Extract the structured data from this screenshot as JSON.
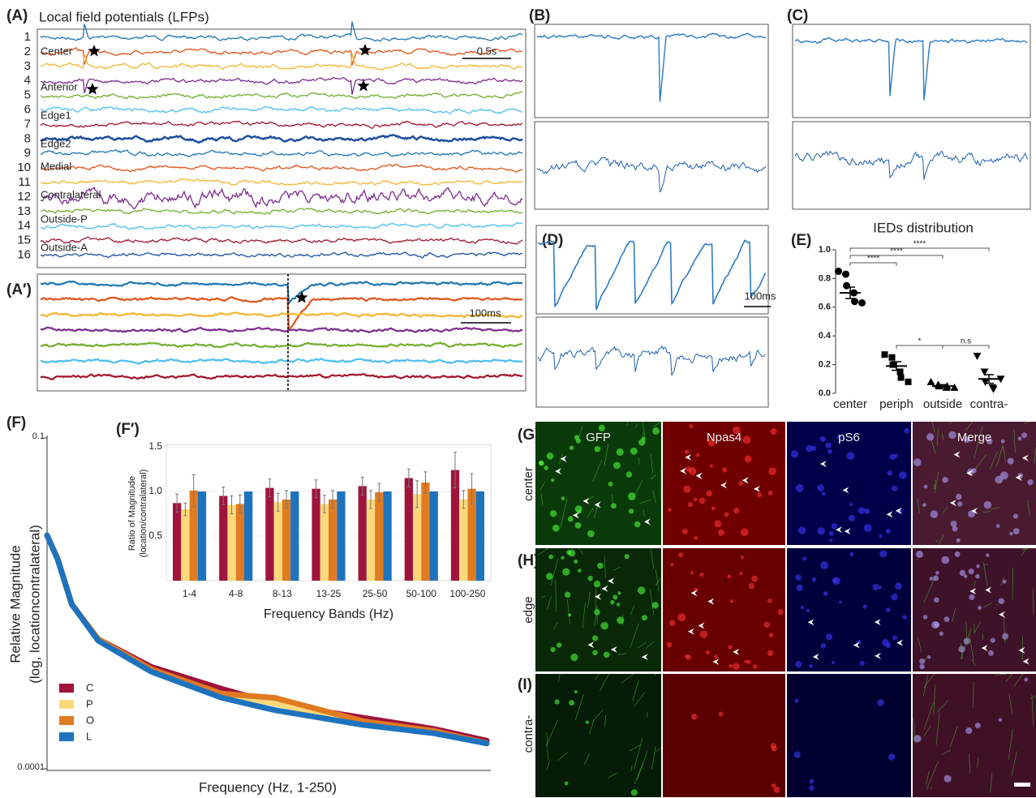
{
  "figure": {
    "A": {
      "label": "(A)",
      "title": "Local field potentials (LFPs)",
      "channels": [
        "1",
        "2",
        "3",
        "4",
        "5",
        "6",
        "7",
        "8",
        "9",
        "10",
        "11",
        "12",
        "13",
        "14",
        "15",
        "16"
      ],
      "regions": [
        "Center",
        "Anterior",
        "Edge1",
        "Edge2",
        "Medial",
        "Contralateral",
        "Outside-P",
        "Outside-A"
      ],
      "scale": "0.5s"
    },
    "A2": {
      "label": "(A′)",
      "scale": "100ms"
    },
    "B": {
      "label": "(B)"
    },
    "C": {
      "label": "(C)"
    },
    "D": {
      "label": "(D)",
      "scale": "100ms"
    },
    "E": {
      "label": "(E)"
    },
    "F": {
      "label": "(F)"
    },
    "F2": {
      "label": "(F′)"
    },
    "G": {
      "label": "(G)",
      "row": "center"
    },
    "H": {
      "label": "(H)",
      "row": "edge"
    },
    "I": {
      "label": "(I)",
      "row": "contra-"
    },
    "stains": [
      "GFP",
      "Npas4",
      "pS6",
      "Merge"
    ]
  },
  "chart_data": [
    {
      "type": "dot",
      "title": "IEDs distribution",
      "categories": [
        "center",
        "periph",
        "outside",
        "contra-"
      ],
      "markers": [
        "circle",
        "square",
        "triangle",
        "triangle-down"
      ],
      "points": [
        [
          0.85,
          0.83,
          0.75,
          0.7,
          0.64,
          0.63
        ],
        [
          0.27,
          0.25,
          0.2,
          0.15,
          0.11,
          0.08
        ],
        [
          0.08,
          0.06,
          0.05,
          0.04,
          0.05,
          0.04
        ],
        [
          0.26,
          0.15,
          0.08,
          0.04,
          0.03,
          0.1
        ]
      ],
      "means": [
        0.7,
        0.19,
        0.05,
        0.1
      ],
      "errors": [
        0.04,
        0.03,
        0.01,
        0.03
      ],
      "ylim": [
        0,
        1
      ],
      "yticks": [
        {
          "value": 0,
          "label": "0.0"
        },
        0.2,
        0.4,
        0.6,
        0.8,
        {
          "value": 1,
          "label": "1.0"
        }
      ],
      "annotations": [
        {
          "text": "****",
          "pair": [
            0,
            1
          ]
        },
        {
          "text": "****",
          "pair": [
            0,
            2
          ]
        },
        {
          "text": "****",
          "pair": [
            0,
            3
          ]
        },
        {
          "text": "*",
          "pair": [
            1,
            2
          ]
        },
        {
          "text": "n.s",
          "pair": [
            2,
            3
          ]
        }
      ]
    },
    {
      "type": "line",
      "xlabel": "Frequency (Hz, 1-250)",
      "ylabel": [
        "Relative Magnitude",
        "(log, locationcontralateral)"
      ],
      "log_y": true,
      "xlim": [
        1,
        250
      ],
      "ylim": [
        0.0001,
        0.1
      ],
      "yticks": [
        0.1,
        0.0001
      ],
      "x": [
        1,
        7,
        15,
        30,
        60,
        100,
        130,
        180,
        220,
        250
      ],
      "series": [
        {
          "name": "C",
          "color": "#a0143c",
          "values": [
            0.0131,
            0.008,
            0.0031,
            0.0015,
            0.00084,
            0.00053,
            0.00039,
            0.00029,
            0.00023,
            0.00018
          ]
        },
        {
          "name": "P",
          "color": "#fbd97a",
          "values": [
            0.0131,
            0.008,
            0.0031,
            0.0015,
            0.00079,
            0.00047,
            0.00039,
            0.00026,
            0.00022,
            0.00017
          ]
        },
        {
          "name": "O",
          "color": "#e07b22",
          "values": [
            0.0131,
            0.008,
            0.0031,
            0.0015,
            0.0008,
            0.00048,
            0.00044,
            0.00027,
            0.00022,
            0.00017
          ]
        },
        {
          "name": "L",
          "color": "#1e73be",
          "values": [
            0.0131,
            0.0079,
            0.0031,
            0.00145,
            0.00076,
            0.00044,
            0.00034,
            0.00025,
            0.00021,
            0.00017
          ]
        }
      ]
    },
    {
      "type": "bar",
      "xlabel": "Frequency Bands (Hz)",
      "ylabel": [
        "Ratio of Magnitude",
        "(location/contralateral)"
      ],
      "categories": [
        "1-4",
        "4-8",
        "8-13",
        "13-25",
        "25-50",
        "50-100",
        "100-250"
      ],
      "ylim": [
        0,
        1.5
      ],
      "yticks": [
        0.5,
        {
          "value": 1,
          "label": "1.0"
        },
        1.5
      ],
      "series": [
        {
          "color": "#a0143c",
          "values": [
            0.87,
            0.95,
            1.04,
            1.03,
            1.06,
            1.15,
            1.24
          ],
          "errors": [
            0.1,
            0.1,
            0.1,
            0.1,
            0.1,
            0.1,
            0.2
          ]
        },
        {
          "color": "#fbd97a",
          "values": [
            0.8,
            0.85,
            0.88,
            0.86,
            0.91,
            0.97,
            0.91
          ],
          "errors": [
            0.07,
            0.1,
            0.1,
            0.1,
            0.1,
            0.15,
            0.1
          ]
        },
        {
          "color": "#e07b22",
          "values": [
            1.01,
            0.86,
            0.91,
            0.91,
            0.99,
            1.1,
            1.03
          ],
          "errors": [
            0.18,
            0.1,
            0.1,
            0.1,
            0.1,
            0.12,
            0.17
          ]
        },
        {
          "color": "#1e73be",
          "values": [
            1,
            1,
            1,
            1,
            1,
            1,
            1
          ]
        }
      ]
    }
  ]
}
